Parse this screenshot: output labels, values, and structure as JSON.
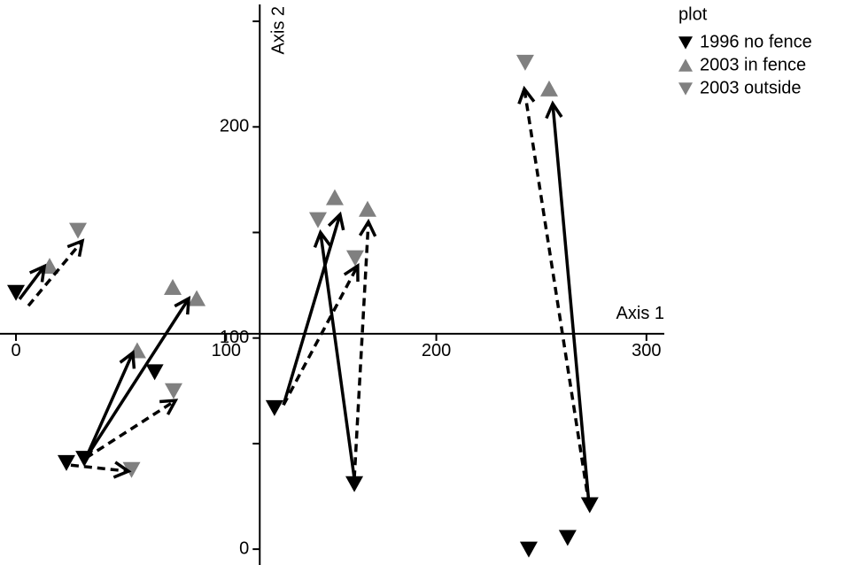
{
  "chart_data": {
    "type": "scatter",
    "x_label": "Axis 1",
    "y_label": "Axis 2",
    "xlim": [
      -7.6,
      308.5
    ],
    "ylim": [
      -7.5,
      258
    ],
    "xticks": [
      0,
      100,
      200,
      300
    ],
    "yticks": [
      0,
      100,
      200
    ],
    "y_minor_ticks": [
      50,
      150,
      250
    ],
    "x_axis_at": 102,
    "y_axis_at": 116,
    "legend_title": "plot",
    "legend_position": "upper right",
    "series": [
      {
        "name": "1996 no fence",
        "color": "#000000",
        "marker": "down",
        "x": [
          0,
          24,
          32.5,
          66,
          123,
          161,
          244,
          262.5,
          273
        ],
        "y": [
          121.6,
          41,
          43,
          84,
          67,
          31,
          0,
          5.5,
          21
        ]
      },
      {
        "name": "2003 in fence",
        "color": "#808080",
        "marker": "up",
        "x": [
          16,
          74.6,
          86,
          57.7,
          151.7,
          167.3,
          253.7
        ],
        "y": [
          134,
          124,
          118.7,
          94,
          166.5,
          161,
          218
        ]
      },
      {
        "name": "2003 outside",
        "color": "#808080",
        "marker": "down",
        "x": [
          29.5,
          75,
          55,
          143.7,
          161.4,
          242.3
        ],
        "y": [
          151,
          75,
          37.7,
          156,
          138,
          230.6
        ]
      }
    ],
    "arrows": [
      {
        "dashed": false,
        "x": [
          1.7,
          13.5
        ],
        "y": [
          118.4,
          134
        ]
      },
      {
        "dashed": true,
        "x": [
          5.9,
          31.6
        ],
        "y": [
          115.3,
          146
        ]
      },
      {
        "dashed": false,
        "x": [
          33.3,
          55.6
        ],
        "y": [
          43.2,
          93
        ]
      },
      {
        "dashed": false,
        "x": [
          33.3,
          82.2
        ],
        "y": [
          43.2,
          118.7
        ]
      },
      {
        "dashed": true,
        "x": [
          33.3,
          75.9
        ],
        "y": [
          43.2,
          70.4
        ]
      },
      {
        "dashed": true,
        "x": [
          26.1,
          53.5
        ],
        "y": [
          39.8,
          36.9
        ]
      },
      {
        "dashed": true,
        "x": [
          127.3,
          162.6
        ],
        "y": [
          68.3,
          134.2
        ]
      },
      {
        "dashed": false,
        "x": [
          127.3,
          154.2
        ],
        "y": [
          68.3,
          158.5
        ]
      },
      {
        "dashed": false,
        "x": [
          161,
          144.9
        ],
        "y": [
          33.5,
          150
        ]
      },
      {
        "dashed": true,
        "x": [
          161,
          167.7
        ],
        "y": [
          33.5,
          155
        ]
      },
      {
        "dashed": true,
        "x": [
          272.7,
          241.9
        ],
        "y": [
          21,
          218
        ]
      },
      {
        "dashed": false,
        "x": [
          272.7,
          255.4
        ],
        "y": [
          21,
          211
        ]
      }
    ]
  }
}
